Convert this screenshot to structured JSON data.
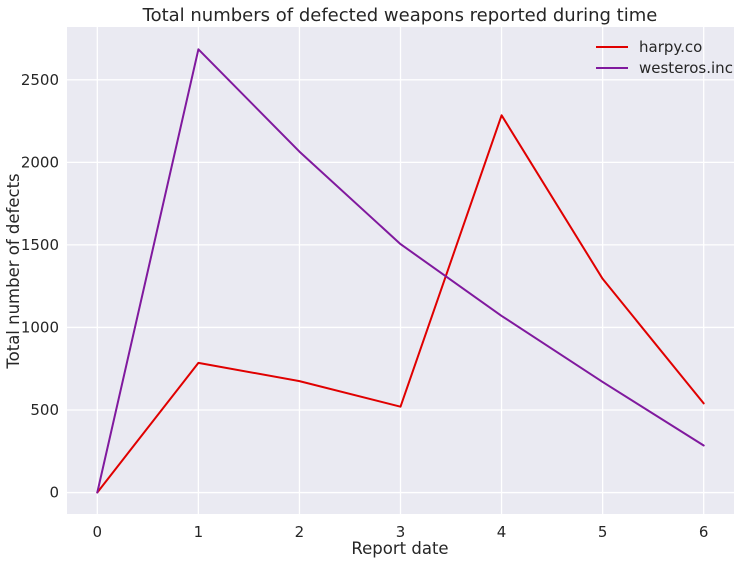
{
  "chart_data": {
    "type": "line",
    "title": "Total numbers of defected weapons reported during time",
    "xlabel": "Report date",
    "ylabel": "Total number of defects",
    "x": [
      0,
      1,
      2,
      3,
      4,
      5,
      6
    ],
    "xticks": [
      "0",
      "1",
      "2",
      "3",
      "4",
      "5",
      "6"
    ],
    "yticks": [
      "0",
      "500",
      "1000",
      "1500",
      "2000",
      "2500"
    ],
    "xlim": [
      -0.3,
      6.3
    ],
    "ylim": [
      -130,
      2820
    ],
    "grid": true,
    "legend_position": "top-right",
    "series": [
      {
        "name": "harpy.co",
        "color": "#e00000",
        "values": [
          0,
          785,
          675,
          520,
          2285,
          1295,
          540
        ]
      },
      {
        "name": "westeros.inc",
        "color": "#80199e",
        "values": [
          0,
          2685,
          2065,
          1505,
          1070,
          670,
          285
        ]
      }
    ]
  }
}
